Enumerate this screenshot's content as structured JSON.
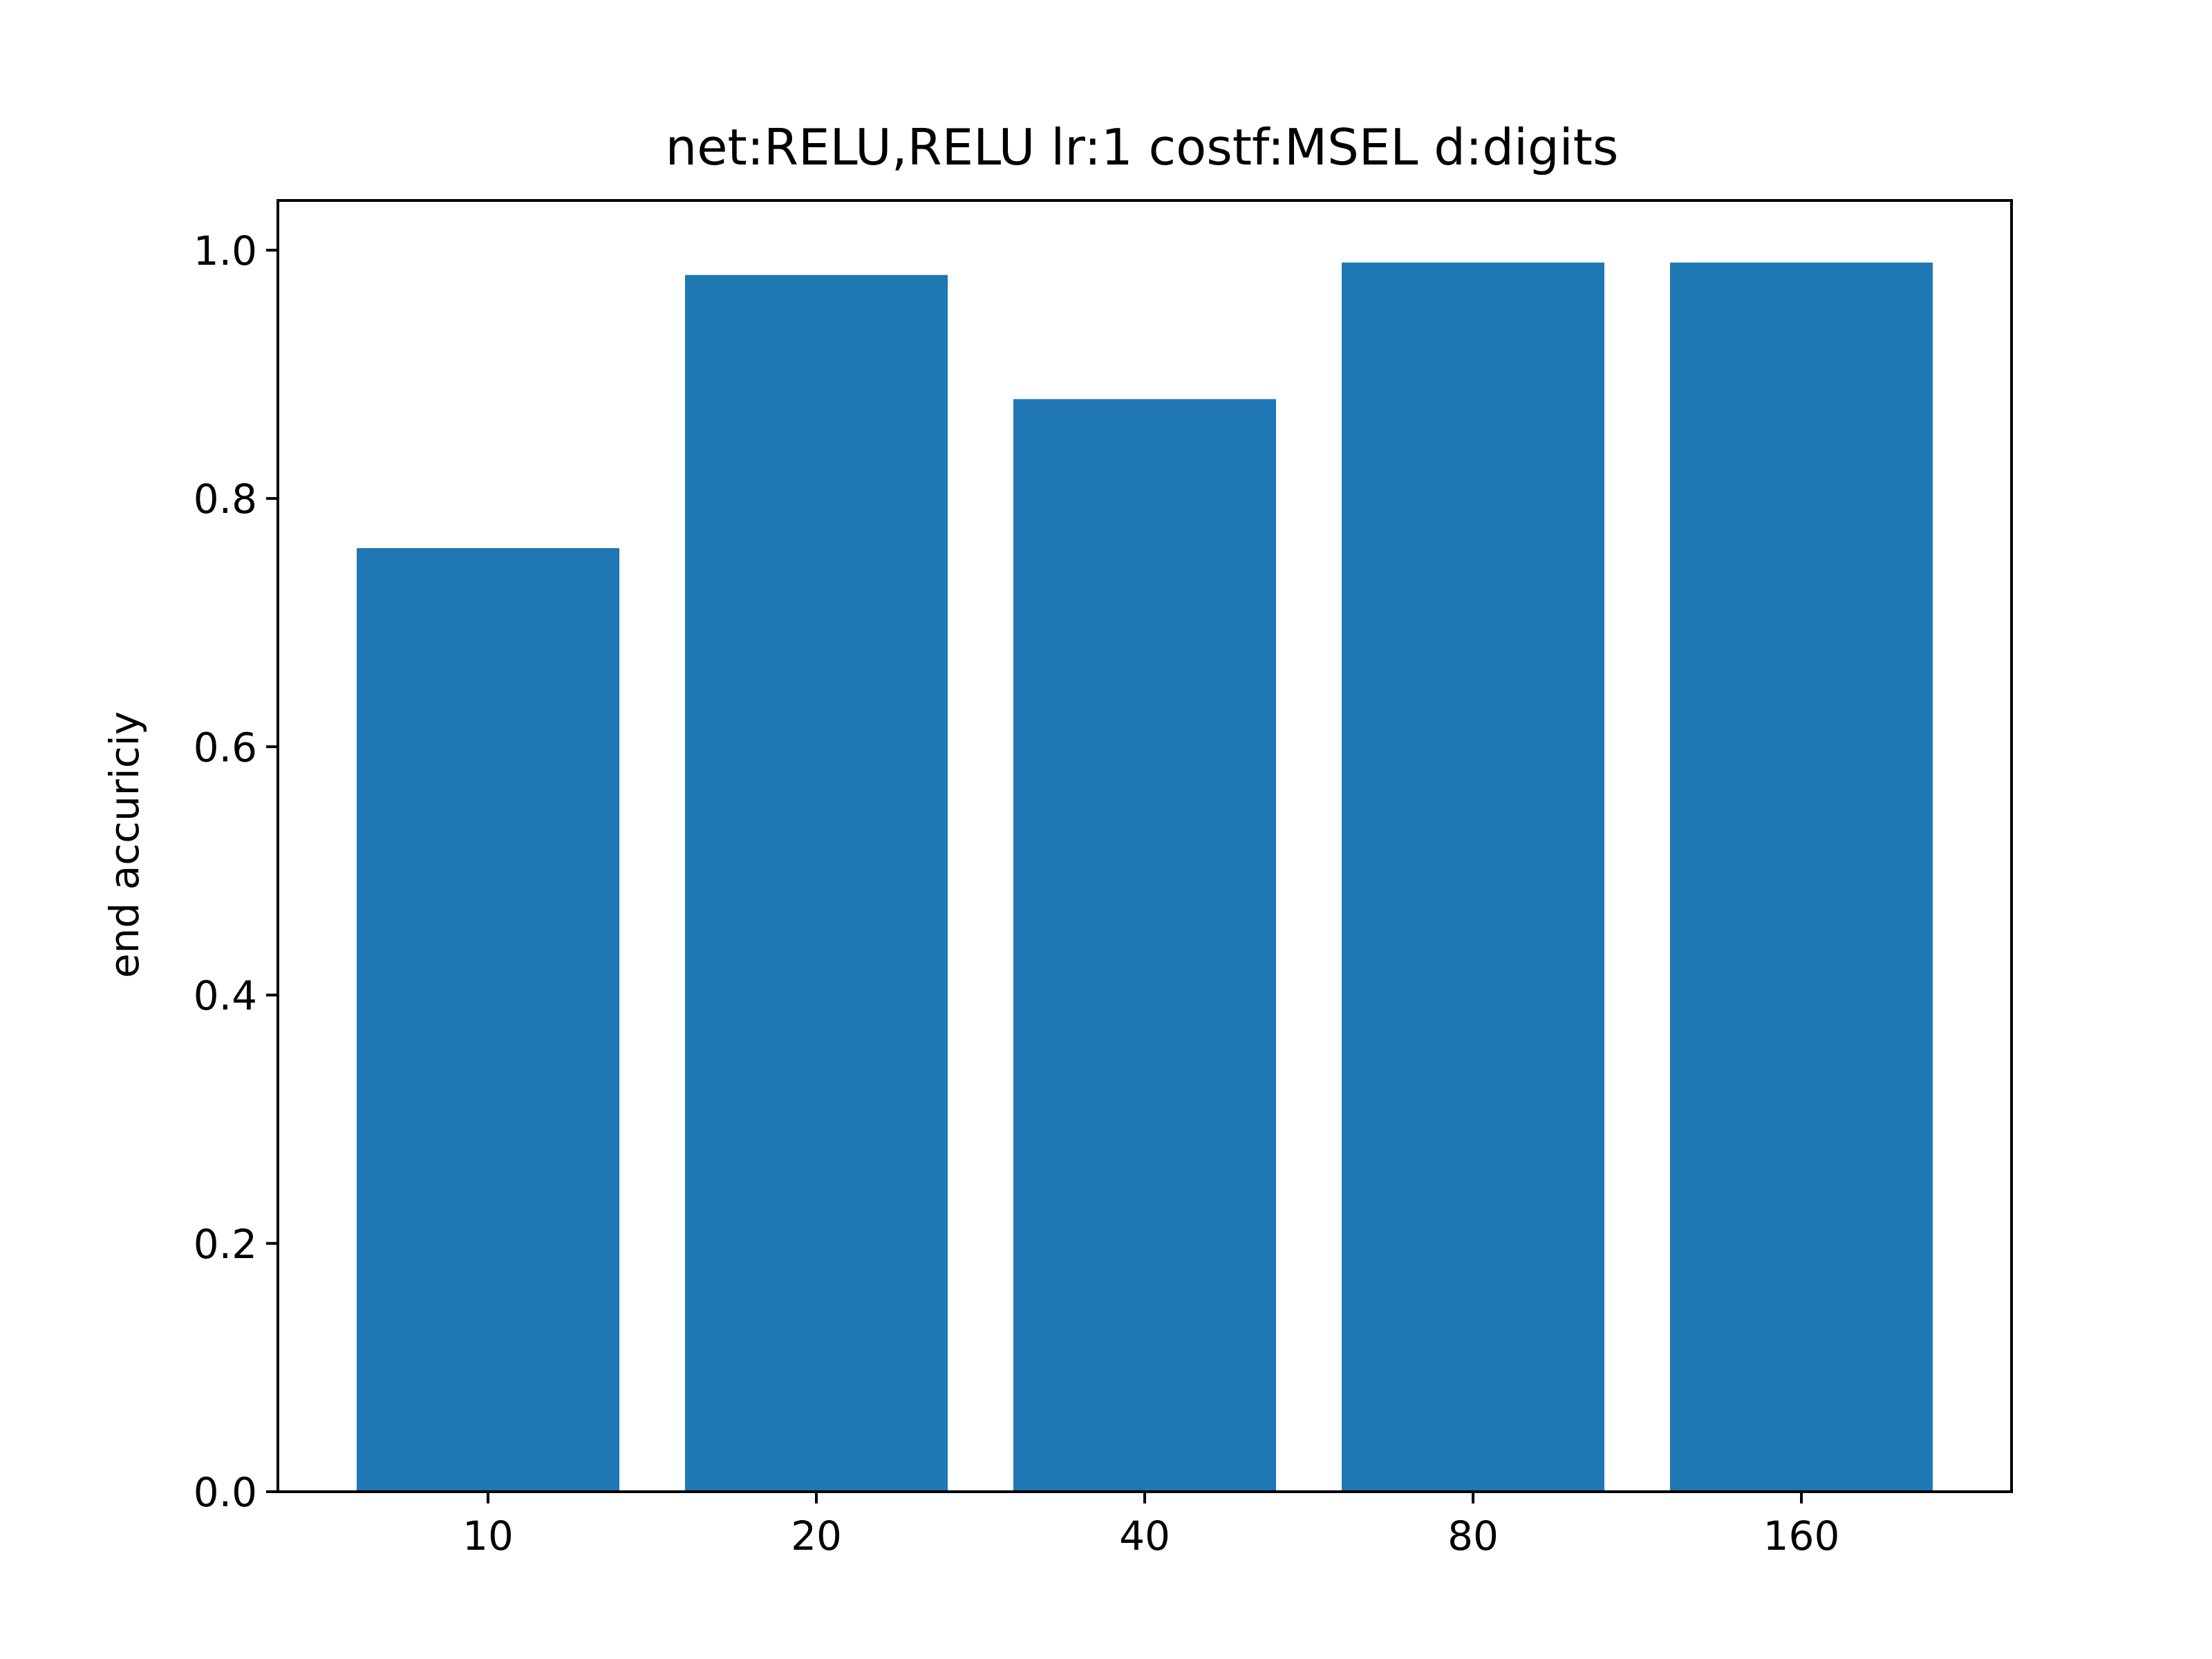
{
  "chart_data": {
    "type": "bar",
    "title": "net:RELU,RELU lr:1 costf:MSEL d:digits",
    "xlabel": "",
    "ylabel": "end accuriciy",
    "categories": [
      "10",
      "20",
      "40",
      "80",
      "160"
    ],
    "values": [
      0.76,
      0.98,
      0.88,
      0.99,
      0.99
    ],
    "ylim": [
      0,
      1.04
    ],
    "yticks": [
      0.0,
      0.2,
      0.4,
      0.6,
      0.8,
      1.0
    ],
    "ytick_labels": [
      "0.0",
      "0.2",
      "0.4",
      "0.6",
      "0.8",
      "1.0"
    ],
    "grid": false,
    "bar_color": "#1f77b4"
  }
}
